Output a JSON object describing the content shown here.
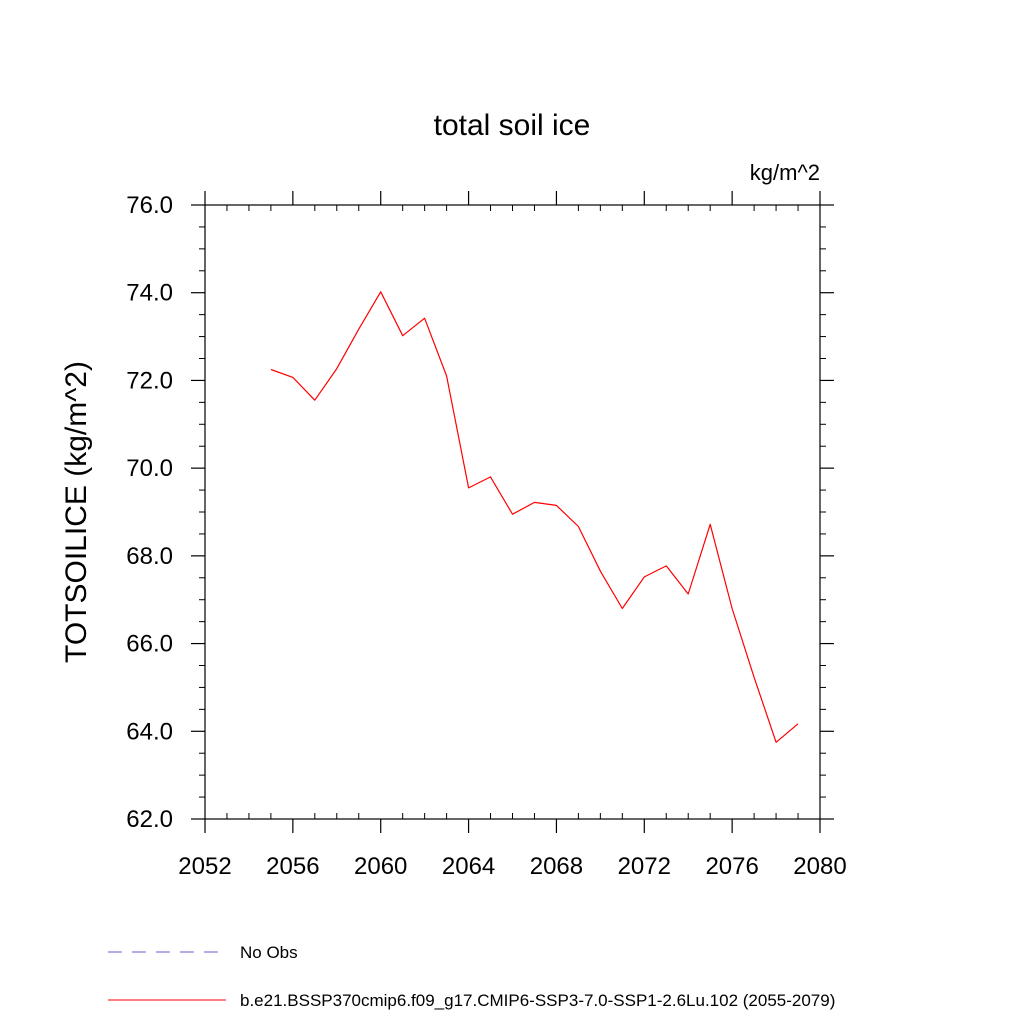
{
  "chart_data": {
    "type": "line",
    "title": "total soil ice",
    "units_label": "kg/m^2",
    "ylabel": "TOTSOILICE  (kg/m^2)",
    "xlabel": "",
    "xlim": [
      2052,
      2080
    ],
    "ylim": [
      62.0,
      76.0
    ],
    "x_ticks": [
      "2052",
      "2056",
      "2060",
      "2064",
      "2068",
      "2072",
      "2076",
      "2080"
    ],
    "x_tick_values": [
      2052,
      2056,
      2060,
      2064,
      2068,
      2072,
      2076,
      2080
    ],
    "y_ticks": [
      "62.0",
      "64.0",
      "66.0",
      "68.0",
      "70.0",
      "72.0",
      "74.0",
      "76.0"
    ],
    "y_tick_values": [
      62,
      64,
      66,
      68,
      70,
      72,
      74,
      76
    ],
    "grid": false,
    "legend_position": "bottom-left",
    "series": [
      {
        "name": "b.e21.BSSP370cmip6.f09_g17.CMIP6-SSP3-7.0-SSP1-2.6Lu.102 (2055-2079)",
        "color": "#ff0000",
        "style": "solid",
        "x": [
          2055,
          2056,
          2057,
          2058,
          2059,
          2060,
          2061,
          2062,
          2063,
          2064,
          2065,
          2066,
          2067,
          2068,
          2069,
          2070,
          2071,
          2072,
          2073,
          2074,
          2075,
          2076,
          2077,
          2078,
          2079
        ],
        "y": [
          72.25,
          72.07,
          71.55,
          72.27,
          73.17,
          74.02,
          73.02,
          73.42,
          72.1,
          69.55,
          69.8,
          68.95,
          69.22,
          69.15,
          68.67,
          67.65,
          66.8,
          67.52,
          67.77,
          67.13,
          68.72,
          66.8,
          65.23,
          63.75,
          64.17
        ]
      }
    ],
    "legend": [
      {
        "label": "No Obs",
        "color": "#6a5acd",
        "style": "dashed"
      },
      {
        "label": "b.e21.BSSP370cmip6.f09_g17.CMIP6-SSP3-7.0-SSP1-2.6Lu.102 (2055-2079)",
        "color": "#ff0000",
        "style": "solid"
      }
    ]
  }
}
